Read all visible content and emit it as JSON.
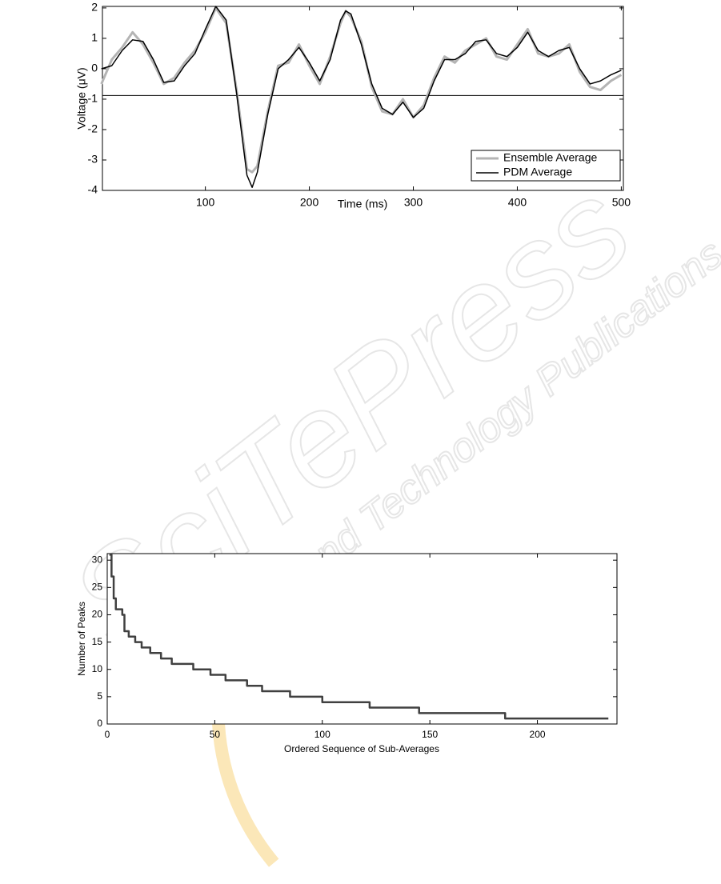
{
  "watermark": {
    "title": "SciTePress",
    "subtitle": "Science and Technology Publications"
  },
  "chart_data": [
    {
      "type": "line",
      "xlabel": "Time (ms)",
      "ylabel": "Voltage (μV)",
      "x": [
        0,
        10,
        20,
        30,
        40,
        50,
        60,
        70,
        80,
        90,
        100,
        110,
        120,
        130,
        140,
        145,
        150,
        160,
        170,
        180,
        190,
        200,
        210,
        220,
        230,
        235,
        240,
        250,
        260,
        270,
        280,
        290,
        300,
        310,
        320,
        330,
        340,
        350,
        360,
        370,
        380,
        390,
        400,
        410,
        420,
        430,
        440,
        450,
        460,
        470,
        480,
        490,
        500
      ],
      "series": [
        {
          "name": "Ensemble Average",
          "color": "#b4b4b4",
          "width": 3,
          "values": [
            -0.5,
            0.3,
            0.7,
            1.2,
            0.8,
            0.2,
            -0.5,
            -0.3,
            0.2,
            0.6,
            1.2,
            2.0,
            1.5,
            -0.7,
            -3.3,
            -3.4,
            -3.2,
            -1.4,
            0.1,
            0.2,
            0.8,
            0.1,
            -0.5,
            0.4,
            1.5,
            1.9,
            1.7,
            0.9,
            -0.6,
            -1.4,
            -1.5,
            -1.0,
            -1.6,
            -1.2,
            -0.3,
            0.4,
            0.2,
            0.6,
            0.8,
            1.0,
            0.4,
            0.3,
            0.8,
            1.3,
            0.5,
            0.4,
            0.5,
            0.8,
            -0.1,
            -0.6,
            -0.7,
            -0.4,
            -0.2
          ]
        },
        {
          "name": "PDM Average",
          "color": "#000000",
          "width": 1.5,
          "values": [
            0.0,
            0.1,
            0.6,
            0.95,
            0.9,
            0.3,
            -0.45,
            -0.4,
            0.1,
            0.5,
            1.3,
            2.05,
            1.6,
            -0.8,
            -3.5,
            -3.9,
            -3.4,
            -1.5,
            0.0,
            0.3,
            0.7,
            0.2,
            -0.4,
            0.3,
            1.6,
            1.9,
            1.8,
            0.8,
            -0.5,
            -1.3,
            -1.5,
            -1.1,
            -1.6,
            -1.3,
            -0.4,
            0.3,
            0.3,
            0.5,
            0.9,
            0.95,
            0.5,
            0.4,
            0.7,
            1.2,
            0.6,
            0.4,
            0.6,
            0.7,
            0.0,
            -0.5,
            -0.4,
            -0.2,
            -0.05
          ]
        }
      ],
      "hline": -0.88,
      "xlim": [
        1,
        502
      ],
      "ylim": [
        -4,
        2.05
      ],
      "xticks": [
        100,
        200,
        300,
        400,
        500
      ],
      "yticks": [
        2,
        1,
        0,
        -1,
        -2,
        -3,
        -4
      ],
      "legend": "lower right"
    },
    {
      "type": "line",
      "step": "post",
      "xlabel": "Ordered Sequence of Sub-Averages",
      "ylabel": "Number of Peaks",
      "x": [
        1,
        2,
        3,
        4,
        7,
        8,
        10,
        13,
        16,
        20,
        25,
        30,
        40,
        48,
        55,
        65,
        72,
        85,
        100,
        122,
        145,
        185,
        233
      ],
      "series": [
        {
          "color": "#404040",
          "width": 2.5,
          "values": [
            31,
            27,
            23,
            21,
            20,
            17,
            16,
            15,
            14,
            13,
            12,
            11,
            10,
            9,
            8,
            7,
            6,
            5,
            4,
            3,
            2,
            1,
            1
          ]
        }
      ],
      "xlim": [
        0,
        237
      ],
      "ylim": [
        0,
        31.2
      ],
      "xticks": [
        0,
        50,
        100,
        150,
        200
      ],
      "yticks": [
        0,
        5,
        10,
        15,
        20,
        25,
        30
      ]
    }
  ]
}
